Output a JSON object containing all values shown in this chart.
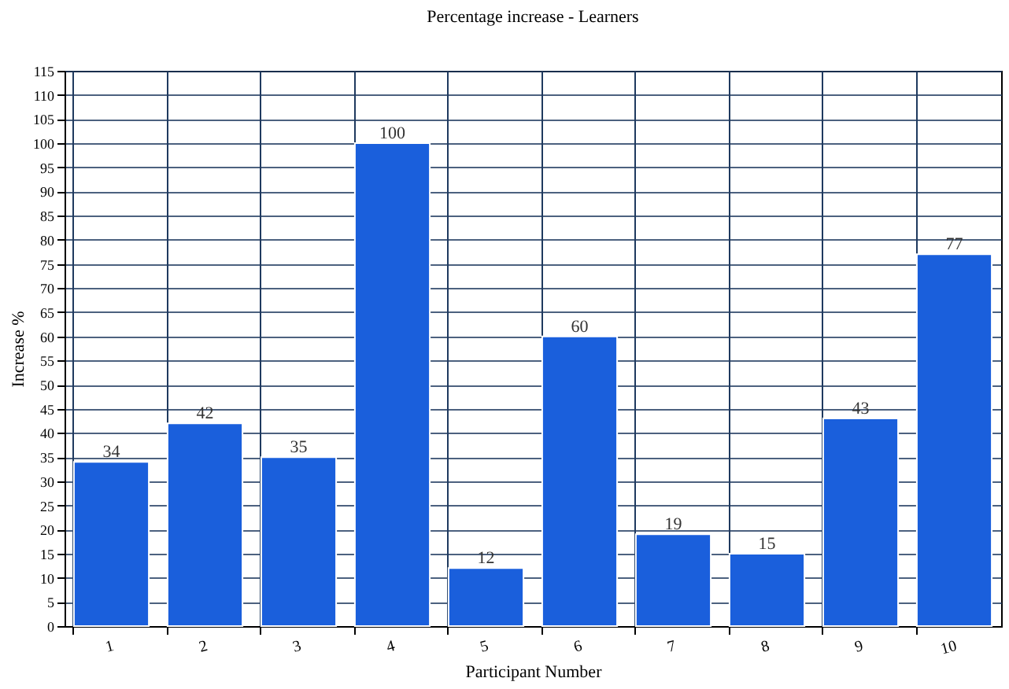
{
  "chart_data": {
    "type": "bar",
    "title": "Percentage increase - Learners",
    "xlabel": "Participant Number",
    "ylabel": "Increase %",
    "categories": [
      "1",
      "2",
      "3",
      "4",
      "5",
      "6",
      "7",
      "8",
      "9",
      "10"
    ],
    "values": [
      34,
      42,
      35,
      100,
      12,
      60,
      19,
      15,
      43,
      77
    ],
    "color": "#1a5fdc",
    "data_labels": true,
    "grid": true,
    "ylim": [
      0,
      115
    ],
    "yticks": [
      0,
      5,
      10,
      15,
      20,
      25,
      30,
      35,
      40,
      45,
      50,
      55,
      60,
      65,
      70,
      75,
      80,
      85,
      90,
      95,
      100,
      105,
      110,
      115
    ]
  }
}
